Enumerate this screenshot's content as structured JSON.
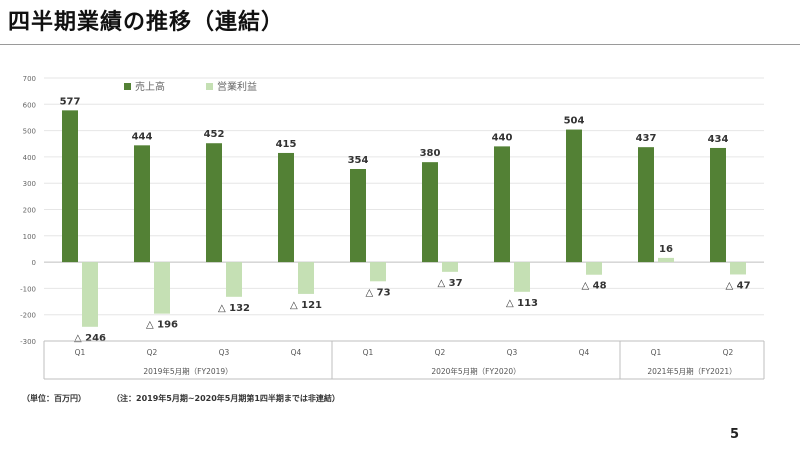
{
  "slide": {
    "title": "四半期業績の推移（連結）",
    "unit_note": "（単位：百万円）",
    "scope_note": "（注：2019年5月期~2020年5月期第1四半期までは非連結）",
    "page_number": "5"
  },
  "colors": {
    "sales": "#538135",
    "operating_income": "#c5e0b4"
  },
  "chart_data": {
    "type": "bar",
    "title": "",
    "xlabel": "",
    "ylabel": "",
    "ylim": [
      -300,
      700
    ],
    "yticks": [
      700,
      600,
      500,
      400,
      300,
      200,
      100,
      0,
      -100,
      -200,
      -300
    ],
    "grid": true,
    "legend_position": "top-left",
    "categories": [
      "Q1",
      "Q2",
      "Q3",
      "Q4",
      "Q1",
      "Q2",
      "Q3",
      "Q4",
      "Q1",
      "Q2"
    ],
    "groups": [
      {
        "label": "2019年5月期（FY2019）",
        "count": 4
      },
      {
        "label": "2020年5月期（FY2020）",
        "count": 4
      },
      {
        "label": "2021年5月期（FY2021）",
        "count": 2
      }
    ],
    "series": [
      {
        "name": "売上高",
        "values": [
          577,
          444,
          452,
          415,
          354,
          380,
          440,
          504,
          437,
          434
        ],
        "labels": [
          "577",
          "444",
          "452",
          "415",
          "354",
          "380",
          "440",
          "504",
          "437",
          "434"
        ]
      },
      {
        "name": "営業利益",
        "values": [
          -246,
          -196,
          -132,
          -121,
          -73,
          -37,
          -113,
          -48,
          16,
          -47
        ],
        "labels": [
          "△ 246",
          "△ 196",
          "△ 132",
          "△ 121",
          "△ 73",
          "△ 37",
          "△ 113",
          "△ 48",
          "16",
          "△ 47"
        ]
      }
    ]
  }
}
